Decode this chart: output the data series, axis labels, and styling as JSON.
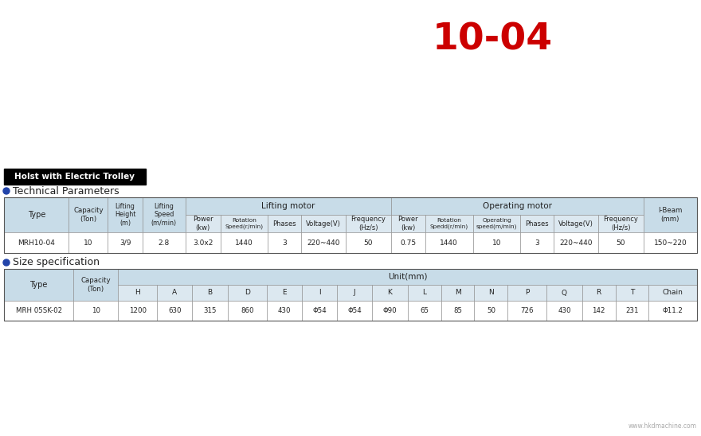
{
  "title": "10-04",
  "title_color": "#cc0000",
  "label_holst": "Holst with Electric Trolley",
  "label_tech": "Technical Parameters",
  "label_size": "Size specification",
  "header_bg": "#c8dce8",
  "subheader_bg": "#dce8f0",
  "data_bg": "#ffffff",
  "t1_col_widths": [
    75,
    45,
    40,
    50,
    40,
    55,
    38,
    52,
    52,
    40,
    55,
    55,
    38,
    52,
    52,
    62
  ],
  "t1_data": [
    "MRH10-04",
    "10",
    "3/9",
    "2.8",
    "3.0x2",
    "1440",
    "3",
    "220~440",
    "50",
    "0.75",
    "1440",
    "10",
    "3",
    "220~440",
    "50",
    "150~220"
  ],
  "t2_col_widths": [
    75,
    48,
    42,
    38,
    38,
    42,
    38,
    38,
    38,
    38,
    36,
    36,
    36,
    42,
    38,
    36,
    36,
    52
  ],
  "t2_data": [
    "MRH 05SK-02",
    "10",
    "1200",
    "630",
    "315",
    "860",
    "430",
    "Φ54",
    "Φ54",
    "Φ90",
    "65",
    "85",
    "50",
    "726",
    "430",
    "142",
    "231",
    "Φ11.2"
  ],
  "t2_cols": [
    "H",
    "A",
    "B",
    "D",
    "E",
    "I",
    "J",
    "K",
    "L",
    "M",
    "N",
    "P",
    "Q",
    "R",
    "T",
    "Chain"
  ],
  "watermark": "www.hkdmachine.com"
}
